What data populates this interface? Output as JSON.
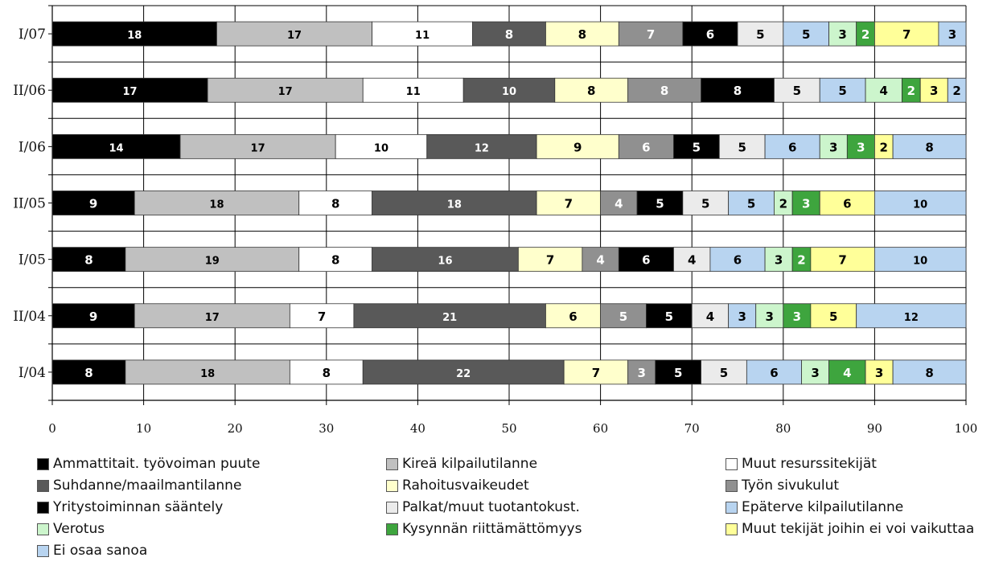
{
  "chart_data": {
    "type": "bar",
    "orientation": "horizontal",
    "stacked": true,
    "title": "",
    "xlabel": "",
    "ylabel": "",
    "xlim": [
      0,
      100
    ],
    "x_ticks": [
      "0",
      "10",
      "20",
      "30",
      "40",
      "50",
      "60",
      "70",
      "80",
      "90",
      "100"
    ],
    "grid": true,
    "legend_position": "bottom",
    "categories": [
      "I/07",
      "II/06",
      "I/06",
      "II/05",
      "I/05",
      "II/04",
      "I/04"
    ],
    "series": [
      {
        "name": "Ammattitait. työvoiman puute",
        "color": "#000000",
        "label_color": "#ffffff",
        "values": [
          18,
          17,
          14,
          9,
          8,
          9,
          8
        ]
      },
      {
        "name": "Kireä kilpailutilanne",
        "color": "#c0c0c0",
        "label_color": "#000000",
        "values": [
          17,
          17,
          17,
          18,
          19,
          17,
          18
        ]
      },
      {
        "name": "Muut resurssitekijät",
        "color": "#ffffff",
        "label_color": "#000000",
        "values": [
          11,
          11,
          10,
          8,
          8,
          7,
          8
        ]
      },
      {
        "name": "Suhdanne/maailmantilanne",
        "color": "#595959",
        "label_color": "#ffffff",
        "values": [
          8,
          10,
          12,
          18,
          16,
          21,
          22
        ]
      },
      {
        "name": "Rahoitusvaikeudet",
        "color": "#ffffcc",
        "label_color": "#000000",
        "values": [
          8,
          8,
          9,
          7,
          7,
          6,
          7
        ]
      },
      {
        "name": "Työn sivukulut",
        "color": "#909090",
        "label_color": "#ffffff",
        "values": [
          7,
          8,
          6,
          4,
          4,
          5,
          3
        ]
      },
      {
        "name": "Yritystoiminnan sääntely",
        "color": "#000000",
        "label_color": "#ffffff",
        "values": [
          6,
          8,
          5,
          5,
          6,
          5,
          5
        ]
      },
      {
        "name": "Palkat/muut tuotantokust.",
        "color": "#ebebeb",
        "label_color": "#000000",
        "values": [
          5,
          5,
          5,
          5,
          4,
          4,
          5
        ]
      },
      {
        "name": "Epäterve kilpailutilanne",
        "color": "#b8d4f0",
        "label_color": "#000000",
        "values": [
          5,
          5,
          6,
          5,
          6,
          3,
          6
        ]
      },
      {
        "name": "Verotus",
        "color": "#ccf5cc",
        "label_color": "#000000",
        "values": [
          3,
          4,
          3,
          2,
          3,
          3,
          3
        ]
      },
      {
        "name": "Kysynnän riittämättömyys",
        "color": "#3ea53e",
        "label_color": "#ffffff",
        "values": [
          2,
          2,
          3,
          3,
          2,
          3,
          4
        ]
      },
      {
        "name": "Muut tekijät joihin ei voi vaikuttaa",
        "color": "#ffff99",
        "label_color": "#000000",
        "values": [
          7,
          3,
          2,
          6,
          7,
          5,
          3
        ]
      },
      {
        "name": "Ei osaa sanoa",
        "color": "#b8d4f0",
        "label_color": "#000000",
        "values": [
          3,
          2,
          8,
          10,
          10,
          12,
          8
        ]
      }
    ]
  }
}
